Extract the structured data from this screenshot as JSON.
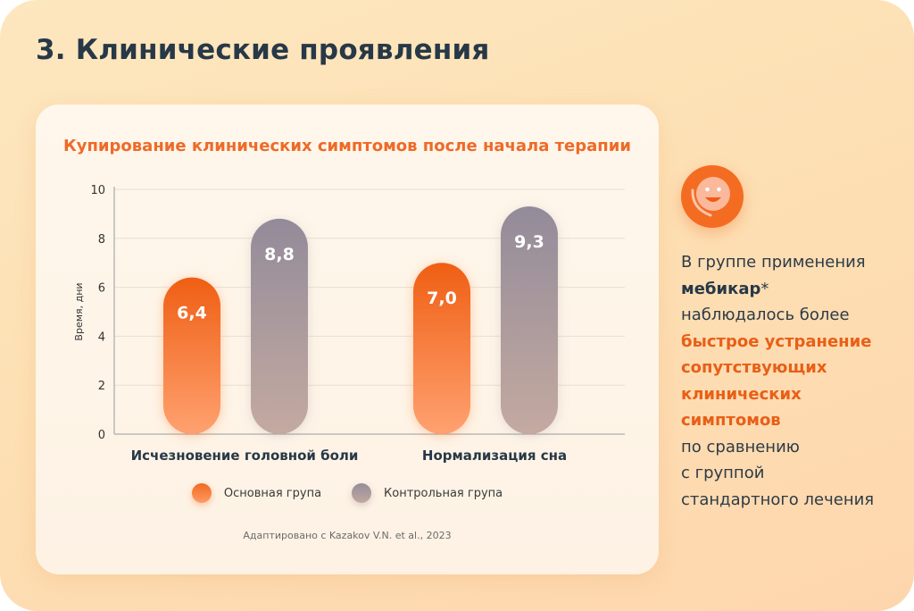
{
  "page": {
    "title": "3. Клинические проявления"
  },
  "colors": {
    "accent": "#ee6a28",
    "main_group": "#f06a22",
    "control_group": "#968d9a",
    "text_dark": "#273847"
  },
  "chart_data": {
    "type": "bar",
    "title": "Купирование клинических симптомов после начала терапии",
    "ylabel": "Время, дни",
    "xlabel": "",
    "ylim": [
      0,
      10
    ],
    "yticks": [
      0,
      2,
      4,
      6,
      8,
      10
    ],
    "ytick_labels": [
      "0",
      "2",
      "4",
      "6",
      "8",
      "10"
    ],
    "grid": true,
    "categories": [
      "Исчезновение головной боли",
      "Нормализация сна"
    ],
    "series": [
      {
        "name": "Основная група",
        "values": [
          6.4,
          7.0
        ],
        "labels": [
          "6,4",
          "7,0"
        ],
        "color": "#f06a22"
      },
      {
        "name": "Контрольная група",
        "values": [
          8.8,
          9.3
        ],
        "labels": [
          "8,8",
          "9,3"
        ],
        "color": "#968d9a"
      }
    ],
    "legend": "bottom",
    "source": "Адаптировано с Kazakov V.N. et al., 2023"
  },
  "sidebar": {
    "icon": "smiley-face-icon",
    "lines": [
      {
        "text": "В группе применения",
        "style": "normal"
      },
      {
        "text": "мебикар",
        "suffix": "*",
        "style": "dark-bold"
      },
      {
        "text": "наблюдалось более",
        "style": "normal"
      },
      {
        "text": "быстрое устранение",
        "style": "accent"
      },
      {
        "text": "сопутствующих",
        "style": "accent"
      },
      {
        "text": "клинических",
        "style": "accent"
      },
      {
        "text": "симптомов",
        "style": "accent"
      },
      {
        "text": "по сравнению",
        "style": "normal"
      },
      {
        "text": "с группой",
        "style": "normal"
      },
      {
        "text": "стандартного лечения",
        "style": "normal"
      }
    ]
  }
}
